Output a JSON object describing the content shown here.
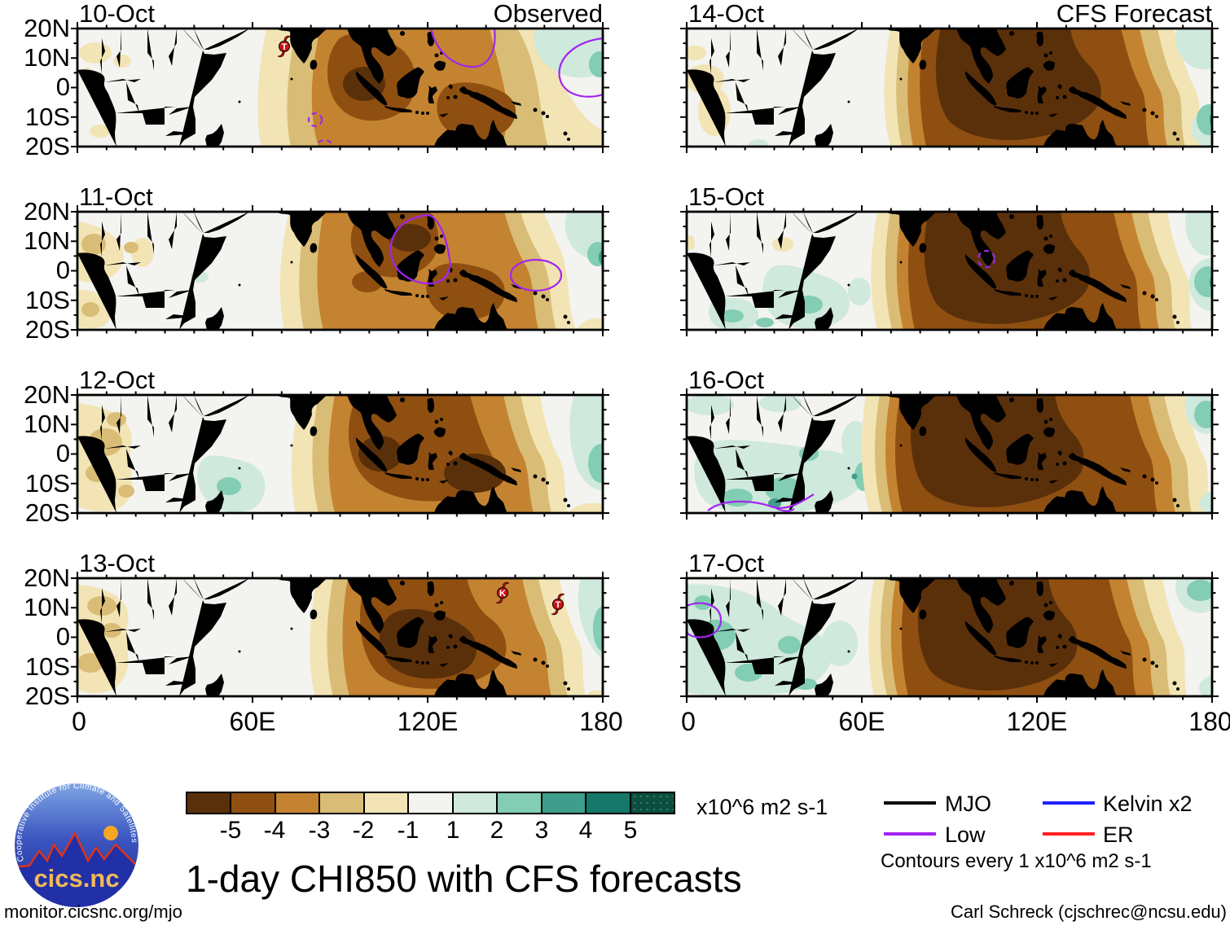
{
  "figure": {
    "title": "1-day CHI850 with CFS forecasts",
    "site": "monitor.cicsnc.org/mjo",
    "credit": "Carl Schreck (cjschrec@ncsu.edu)",
    "logo": {
      "org": "Cooperative Institute for Climate and Satellites",
      "name": "cics.nc"
    }
  },
  "columns": [
    {
      "header": "Observed"
    },
    {
      "header": "CFS Forecast"
    }
  ],
  "axes": {
    "x_ticks": [
      "0",
      "60E",
      "120E",
      "180"
    ],
    "y_ticks": [
      "20N",
      "10N",
      "0",
      "10S",
      "20S"
    ]
  },
  "colorbar": {
    "units": "x10^6 m2 s-1",
    "tick_labels": [
      "-5",
      "-4",
      "-3",
      "-2",
      "-1",
      "1",
      "2",
      "3",
      "4",
      "5"
    ],
    "colors": [
      "#5a300b",
      "#8f4f10",
      "#c48330",
      "#d9bd76",
      "#f2e4b5",
      "#f3f3f0",
      "#cfe9dc",
      "#82cdb3",
      "#3f9e8b",
      "#15786a",
      "#0d4e3f"
    ]
  },
  "legend": {
    "items": [
      {
        "label": "MJO",
        "color": "#000000"
      },
      {
        "label": "Low",
        "color": "#a224f0"
      },
      {
        "label": "Kelvin x2",
        "color": "#2020ff"
      },
      {
        "label": "ER",
        "color": "#ff2020"
      }
    ],
    "note": "Contours every 1 x10^6 m2 s-1"
  },
  "chart_data": {
    "type": "heatmap",
    "subtype": "filled-contour-map-grid",
    "variable": "CHI850 (850 hPa velocity potential) anomaly",
    "units": "x10^6 m2 s-1",
    "contour_interval_note": "Contours every 1 x10^6 m2 s-1",
    "lon_range": [
      0,
      180
    ],
    "lat_range": [
      -20,
      20
    ],
    "fill_levels": [
      -5,
      -4,
      -3,
      -2,
      -1,
      1,
      2,
      3,
      4,
      5
    ],
    "legend_position": "bottom-right",
    "panels": [
      {
        "date": "10-Oct",
        "column": "Observed",
        "negative_anomaly": "brown anomalies 85E-160E, -4 cores near Sumatra/Borneo and New Guinea, small -5 spot near 98E equator",
        "positive_anomaly": "+1 teal near 155E-180 north of equator with small +2 at right edge",
        "storms": [
          {
            "label": "T",
            "lon": 70,
            "lat": 14
          }
        ]
      },
      {
        "date": "11-Oct",
        "column": "Observed",
        "negative_anomaly": "brown 95E-160E; -4/-5 cores over South China Sea region and New Guinea; tan patches over West Africa",
        "positive_anomaly": "+1 to +3 near 170E-180 on the equator",
        "storms": []
      },
      {
        "date": "12-Oct",
        "column": "Observed",
        "negative_anomaly": "broad brown 95E-160E with -5 cores near Sumatra and New Guinea",
        "positive_anomaly": "+1/+2 western Indian Ocean 40E-60E south of equator; +1 to +3 at 165E-180",
        "storms": []
      },
      {
        "date": "13-Oct",
        "column": "Observed",
        "negative_anomaly": "broad brown 100E-165E, large -5 core 105E-140E equator to 10S",
        "positive_anomaly": "+1 to +3 near 168E-180",
        "storms": [
          {
            "label": "K",
            "lon": 143,
            "lat": 15
          },
          {
            "label": "T",
            "lon": 160,
            "lat": 11
          }
        ]
      },
      {
        "date": "14-Oct",
        "column": "CFS Forecast",
        "negative_anomaly": "very large -5 core 85E-145E over Maritime Continent",
        "positive_anomaly": "+1 to +3 near the Date Line; weak tan over western Africa",
        "storms": []
      },
      {
        "date": "15-Oct",
        "column": "CFS Forecast",
        "negative_anomaly": "-5 core 80E-150E; small purple dashed low near Malay Peninsula",
        "positive_anomaly": "+1/+2 East Africa and SW Indian Ocean; +2/+3 near 175E",
        "storms": []
      },
      {
        "date": "16-Oct",
        "column": "CFS Forecast",
        "negative_anomaly": "-5 core 80E-155E tilted southeast; purple low contour over southern Africa 20S",
        "positive_anomaly": "+1 to +3 over southern/eastern Africa; +2 near 175E north of equator",
        "storms": []
      },
      {
        "date": "17-Oct",
        "column": "CFS Forecast",
        "negative_anomaly": "-5 core 80E-150E; purple contour at West African coast near equator",
        "positive_anomaly": "+1/+2 across most of Africa; +2 near 165E-180 north",
        "storms": []
      }
    ]
  }
}
